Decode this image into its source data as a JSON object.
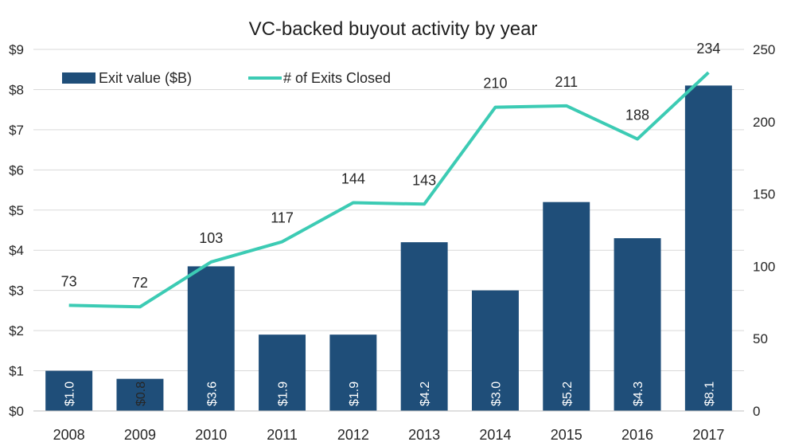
{
  "chart_data": {
    "type": "bar",
    "title": "VC-backed buyout activity by year",
    "categories": [
      "2008",
      "2009",
      "2010",
      "2011",
      "2012",
      "2013",
      "2014",
      "2015",
      "2016",
      "2017"
    ],
    "series": [
      {
        "name": "Exit value ($B)",
        "type": "bar",
        "axis": "left",
        "values": [
          1.0,
          0.8,
          3.6,
          1.9,
          1.9,
          4.2,
          3.0,
          5.2,
          4.3,
          8.1
        ],
        "labels": [
          "$1.0",
          "$0.8",
          "$3.6",
          "$1.9",
          "$1.9",
          "$4.2",
          "$3.0",
          "$5.2",
          "$4.3",
          "$8.1"
        ]
      },
      {
        "name": "# of Exits Closed",
        "type": "line",
        "axis": "right",
        "values": [
          73,
          72,
          103,
          117,
          144,
          143,
          210,
          211,
          188,
          234
        ],
        "labels": [
          "73",
          "72",
          "103",
          "117",
          "144",
          "143",
          "210",
          "211",
          "188",
          "234"
        ]
      }
    ],
    "left_axis": {
      "ylim": [
        0,
        9
      ],
      "ticks": [
        0,
        1,
        2,
        3,
        4,
        5,
        6,
        7,
        8,
        9
      ],
      "tick_labels": [
        "$0",
        "$1",
        "$2",
        "$3",
        "$4",
        "$5",
        "$6",
        "$7",
        "$8",
        "$9"
      ]
    },
    "right_axis": {
      "ylim": [
        0,
        250
      ],
      "ticks": [
        0,
        50,
        100,
        150,
        200,
        250
      ],
      "tick_labels": [
        "0",
        "50",
        "100",
        "150",
        "200",
        "250"
      ]
    },
    "grid": true,
    "legend": "top-left",
    "colors": {
      "bar": "#1f4e79",
      "line": "#3ccbb4"
    }
  }
}
